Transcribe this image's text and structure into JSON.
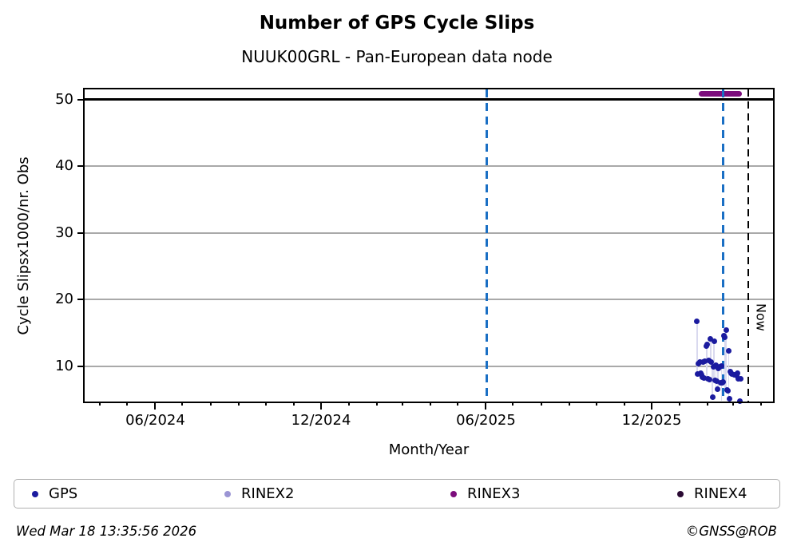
{
  "header": {
    "title": "Number of GPS Cycle Slips",
    "subtitle": "NUUK00GRL - Pan-European data node"
  },
  "chart_data": {
    "type": "scatter",
    "title": "Number of GPS Cycle Slips",
    "subtitle": "NUUK00GRL - Pan-European data node",
    "xlabel": "Month/Year",
    "ylabel": "Cycle Slipsx1000/nr. Obs",
    "x_domain": [
      "2024-03-15",
      "2026-04-14"
    ],
    "ylim": [
      4.74,
      51.5
    ],
    "y_ticks": [
      10,
      20,
      30,
      40,
      50
    ],
    "grid": "horizontal",
    "grid_color": "#a9a9a9",
    "x_major_ticks": [
      {
        "date": "2024-06-01",
        "label": "06/2024"
      },
      {
        "date": "2024-12-01",
        "label": "12/2024"
      },
      {
        "date": "2025-06-01",
        "label": "06/2025"
      },
      {
        "date": "2025-12-01",
        "label": "12/2025"
      }
    ],
    "x_minor_tick_dates": [
      "2024-04-01",
      "2024-05-01",
      "2024-06-01",
      "2024-07-01",
      "2024-08-01",
      "2024-09-01",
      "2024-10-01",
      "2024-11-01",
      "2024-12-01",
      "2025-01-01",
      "2025-02-01",
      "2025-03-01",
      "2025-04-01",
      "2025-05-01",
      "2025-06-01",
      "2025-07-01",
      "2025-08-01",
      "2025-09-01",
      "2025-10-01",
      "2025-11-01",
      "2025-12-01",
      "2026-01-01",
      "2026-02-01",
      "2026-03-01",
      "2026-04-01"
    ],
    "threshold_line": {
      "value": 50,
      "color": "#000000"
    },
    "vlines": [
      {
        "date": "2025-06-02",
        "color": "#1a6fc4",
        "style": "dashed-blue",
        "label": ""
      },
      {
        "date": "2026-02-18",
        "color": "#1a6fc4",
        "style": "dashed-blue",
        "label": ""
      },
      {
        "date": "2026-03-18",
        "color": "#000000",
        "style": "dashed-black",
        "label": "Now"
      }
    ],
    "range_bars": {
      "color": "#d9d9ef",
      "items": [
        [
          "2026-01-20",
          16.7,
          8.8
        ],
        [
          "2026-02-21",
          15.4,
          6.4
        ],
        [
          "2026-02-20",
          14.4,
          6.7
        ],
        [
          "2026-02-04",
          14.1,
          10.5
        ],
        [
          "2026-02-08",
          13.8,
          7.7
        ],
        [
          "2026-01-31",
          13.3,
          8.0
        ],
        [
          "2026-02-24",
          12.3,
          5.0
        ],
        [
          "2026-02-16",
          10.1,
          4.8
        ],
        [
          "2026-02-10",
          10.2,
          6.5
        ],
        [
          "2026-02-06",
          10.0,
          5.3
        ],
        [
          "2026-02-12",
          9.8,
          6.5
        ],
        [
          "2026-02-18",
          10.4,
          7.6
        ]
      ]
    },
    "series": [
      {
        "name": "GPS",
        "color": "#1b1b9f",
        "points": [
          [
            "2026-01-20",
            16.7
          ],
          [
            "2026-01-21",
            8.9
          ],
          [
            "2026-01-22",
            10.4
          ],
          [
            "2026-01-23",
            10.7
          ],
          [
            "2026-01-24",
            9.0
          ],
          [
            "2026-01-25",
            8.7
          ],
          [
            "2026-01-26",
            8.4
          ],
          [
            "2026-01-27",
            10.6
          ],
          [
            "2026-01-28",
            8.3
          ],
          [
            "2026-01-29",
            10.8
          ],
          [
            "2026-01-30",
            13.1
          ],
          [
            "2026-01-31",
            13.3
          ],
          [
            "2026-02-01",
            8.1
          ],
          [
            "2026-02-02",
            10.9
          ],
          [
            "2026-02-03",
            8.0
          ],
          [
            "2026-02-04",
            14.1
          ],
          [
            "2026-02-05",
            10.7
          ],
          [
            "2026-02-06",
            5.4
          ],
          [
            "2026-02-07",
            9.9
          ],
          [
            "2026-02-08",
            13.8
          ],
          [
            "2026-02-09",
            7.9
          ],
          [
            "2026-02-10",
            10.2
          ],
          [
            "2026-02-11",
            7.8
          ],
          [
            "2026-02-12",
            6.6
          ],
          [
            "2026-02-13",
            9.7
          ],
          [
            "2026-02-14",
            10.0
          ],
          [
            "2026-02-15",
            7.6
          ],
          [
            "2026-02-16",
            10.1
          ],
          [
            "2026-02-17",
            7.5
          ],
          [
            "2026-02-18",
            7.7
          ],
          [
            "2026-02-19",
            14.6
          ],
          [
            "2026-02-20",
            14.4
          ],
          [
            "2026-02-21",
            15.4
          ],
          [
            "2026-02-22",
            6.5
          ],
          [
            "2026-02-23",
            6.4
          ],
          [
            "2026-02-24",
            12.3
          ],
          [
            "2026-02-25",
            5.1
          ],
          [
            "2026-02-26",
            9.2
          ],
          [
            "2026-02-27",
            9.0
          ],
          [
            "2026-02-28",
            8.9
          ],
          [
            "2026-03-02",
            8.8
          ],
          [
            "2026-03-04",
            8.7
          ],
          [
            "2026-03-05",
            8.6
          ],
          [
            "2026-03-06",
            9.0
          ],
          [
            "2026-03-07",
            8.2
          ],
          [
            "2026-03-08",
            4.8
          ],
          [
            "2026-03-09",
            8.1
          ]
        ]
      },
      {
        "name": "RINEX2",
        "color": "#9b95d4",
        "points": []
      },
      {
        "name": "RINEX3",
        "color": "#7c0d7c",
        "segment": {
          "start": "2026-01-22",
          "end": "2026-03-11",
          "value": 50.9
        }
      },
      {
        "name": "RINEX4",
        "color": "#2a0a33",
        "points": []
      }
    ],
    "legend_position": "bottom"
  },
  "legend": {
    "items": [
      {
        "label": "GPS",
        "color": "#1b1b9f"
      },
      {
        "label": "RINEX2",
        "color": "#9b95d4"
      },
      {
        "label": "RINEX3",
        "color": "#7c0d7c"
      },
      {
        "label": "RINEX4",
        "color": "#2a0a33"
      }
    ]
  },
  "footer": {
    "timestamp": "Wed Mar 18 13:35:56 2026",
    "credit": "©GNSS@ROB"
  }
}
